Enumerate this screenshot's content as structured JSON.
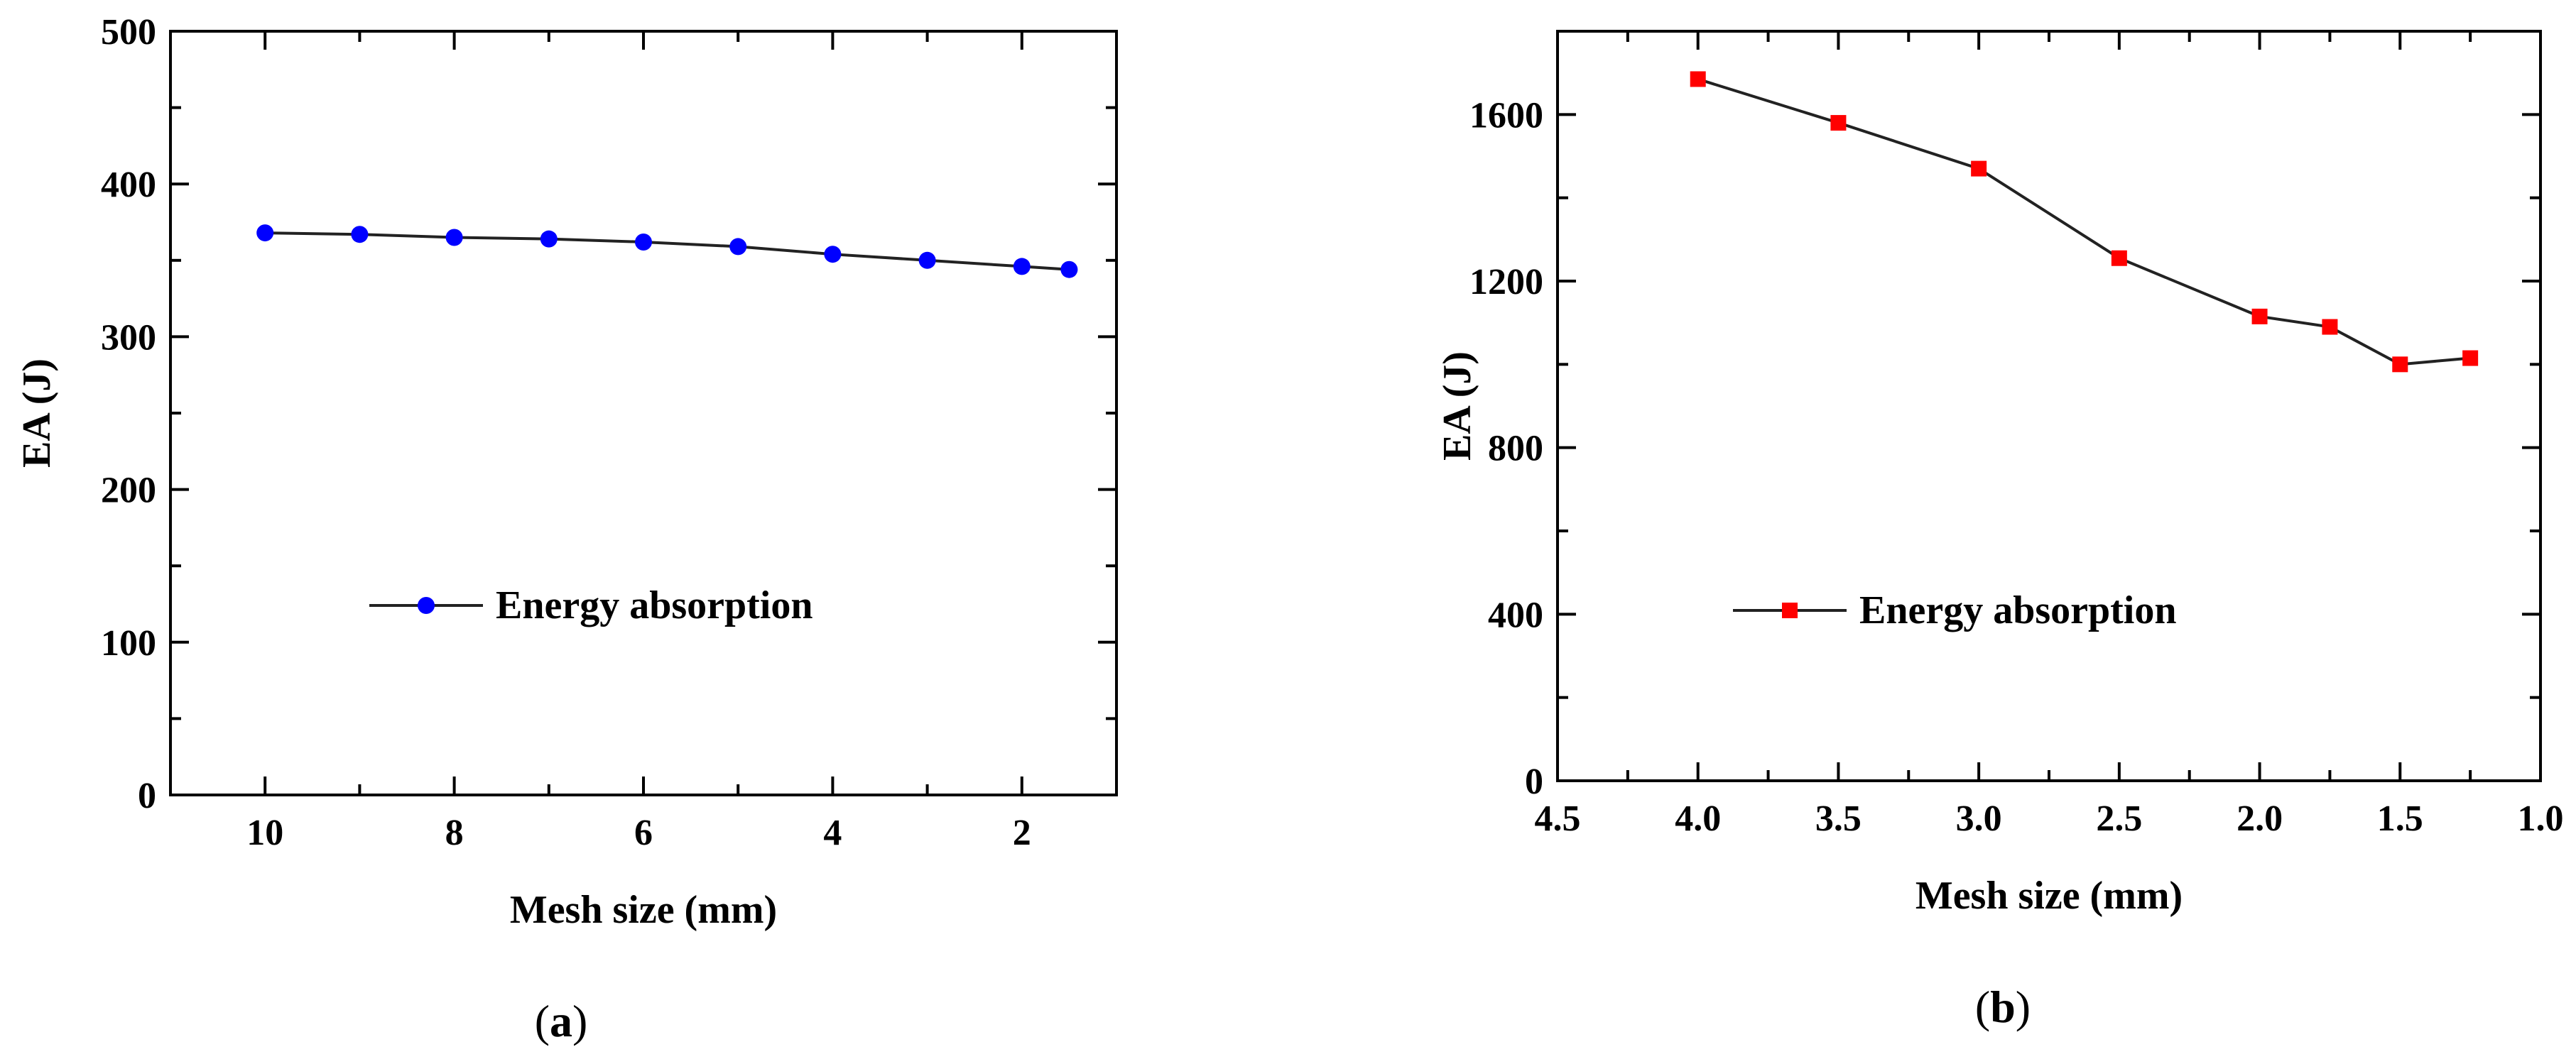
{
  "chart_data": [
    {
      "panel_label": "a",
      "type": "line",
      "title": "",
      "xlabel": "Mesh size (mm)",
      "ylabel": "EA (J)",
      "xlim": [
        11,
        1
      ],
      "ylim": [
        0,
        500
      ],
      "x_reversed": true,
      "x_ticks": [
        10,
        8,
        6,
        4,
        2
      ],
      "x_tick_labels": [
        "10",
        "8",
        "6",
        "4",
        "2"
      ],
      "y_ticks": [
        0,
        100,
        200,
        300,
        400,
        500
      ],
      "y_tick_labels": [
        "0",
        "100",
        "200",
        "300",
        "400",
        "500"
      ],
      "grid": false,
      "legend_position": "center",
      "series": [
        {
          "name": "Energy absorption",
          "marker": "circle",
          "color": "#0000ff",
          "line_color": "#222222",
          "x": [
            10,
            9,
            8,
            7,
            6,
            5,
            4,
            3,
            2,
            1.5
          ],
          "y": [
            368,
            367,
            365,
            364,
            362,
            359,
            354,
            350,
            346,
            344
          ]
        }
      ]
    },
    {
      "panel_label": "b",
      "type": "line",
      "title": "",
      "xlabel": "Mesh size (mm)",
      "ylabel": "EA (J)",
      "xlim": [
        4.5,
        1.0
      ],
      "ylim": [
        0,
        1800
      ],
      "x_reversed": true,
      "x_ticks": [
        4.5,
        4.0,
        3.5,
        3.0,
        2.5,
        2.0,
        1.5,
        1.0
      ],
      "x_tick_labels": [
        "4.5",
        "4.0",
        "3.5",
        "3.0",
        "2.5",
        "2.0",
        "1.5",
        "1.0"
      ],
      "y_ticks": [
        0,
        400,
        800,
        1200,
        1600
      ],
      "y_tick_labels": [
        "0",
        "400",
        "800",
        "1200",
        "1600"
      ],
      "grid": false,
      "legend_position": "lower-left",
      "series": [
        {
          "name": "Energy absorption",
          "marker": "square",
          "color": "#ff0000",
          "line_color": "#222222",
          "x": [
            4.0,
            3.5,
            3.0,
            2.5,
            2.0,
            1.75,
            1.5,
            1.25
          ],
          "y": [
            1685,
            1580,
            1470,
            1255,
            1115,
            1090,
            1000,
            1015
          ]
        }
      ]
    }
  ]
}
